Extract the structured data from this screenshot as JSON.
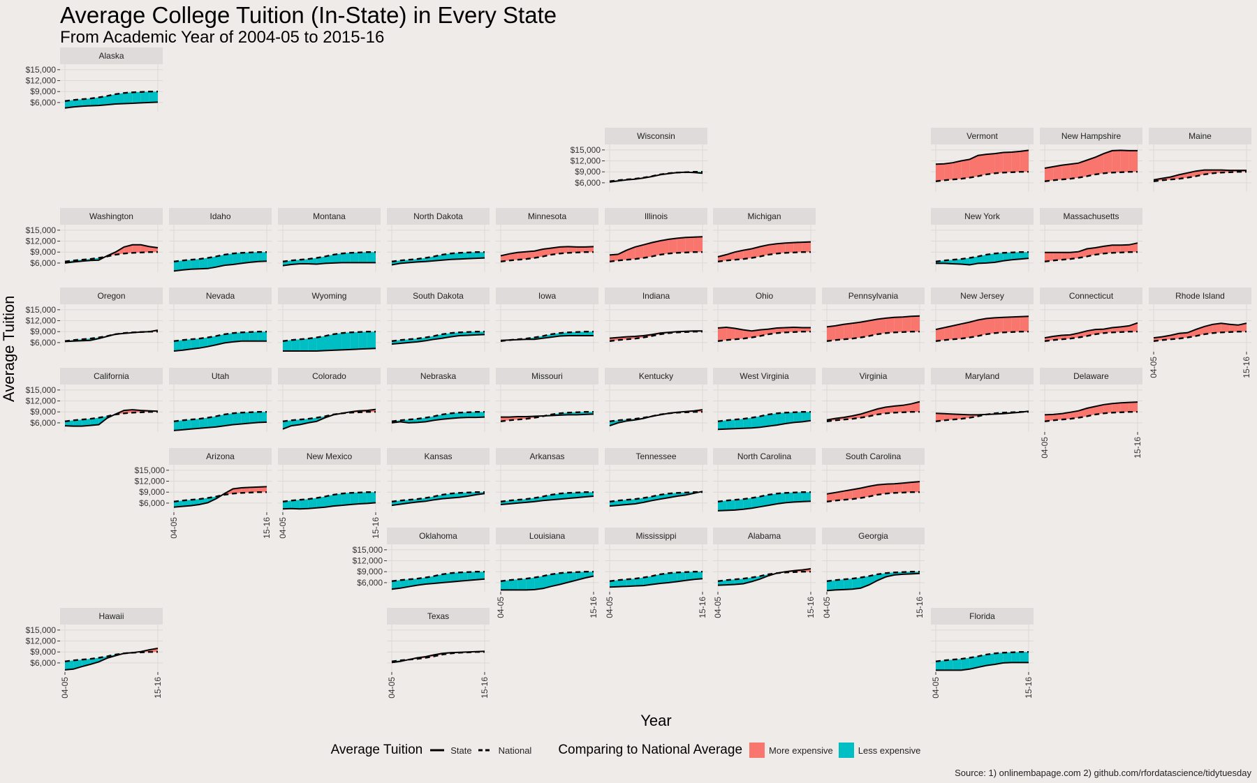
{
  "title": "Average College Tuition (In-State) in Every State",
  "subtitle": "From Academic Year of 2004-05 to 2015-16",
  "source": "Source: 1) onlinembapage.com 2) github.com/rfordatascience/tidytuesday",
  "colors": {
    "background": "#efebe9",
    "grid": "#dcd8d6",
    "strip": "#dedbda",
    "more": "#f8766d",
    "less": "#00bfc4"
  },
  "legend": {
    "line_title": "Average Tuition",
    "state_label": "State",
    "national_label": "National",
    "fill_title": "Comparing to National Average",
    "more_label": "More expensive",
    "less_label": "Less expensive"
  },
  "chart_data": {
    "type": "area",
    "facet": "state",
    "xlabel": "Year",
    "ylabel": "Average Tuition",
    "x_tick_labels": [
      "04-05",
      "15-16"
    ],
    "y_ticks": [
      6000,
      9000,
      12000,
      15000
    ],
    "y_tick_labels": [
      "$6,000",
      "$9,000",
      "$12,000",
      "$15,000"
    ],
    "ylim": [
      3500,
      16500
    ],
    "grid": true,
    "legend_position": "bottom",
    "national": [
      6400,
      6700,
      6900,
      7100,
      7400,
      7800,
      8300,
      8600,
      8800,
      8900,
      9000,
      9000
    ],
    "states": [
      {
        "name": "Alaska",
        "values": [
          4500,
          4800,
          5000,
          5100,
          5200,
          5400,
          5600,
          5700,
          5800,
          5900,
          6000,
          6100
        ]
      },
      {
        "name": "Wisconsin",
        "values": [
          6200,
          6500,
          6800,
          7000,
          7300,
          7700,
          8200,
          8500,
          8800,
          8900,
          8800,
          8600
        ]
      },
      {
        "name": "Vermont",
        "values": [
          11100,
          11200,
          11500,
          12000,
          12400,
          13500,
          13800,
          14000,
          14300,
          14400,
          14600,
          14900
        ]
      },
      {
        "name": "New Hampshire",
        "values": [
          10000,
          10400,
          10800,
          11100,
          11400,
          12200,
          13000,
          14000,
          14800,
          14900,
          14800,
          14800
        ]
      },
      {
        "name": "Maine",
        "values": [
          6800,
          7200,
          7600,
          8200,
          8700,
          9200,
          9500,
          9500,
          9500,
          9400,
          9400,
          9400
        ]
      },
      {
        "name": "Washington",
        "values": [
          6000,
          6300,
          6500,
          6700,
          6800,
          8000,
          9000,
          10400,
          11000,
          11000,
          10500,
          10200
        ]
      },
      {
        "name": "Idaho",
        "values": [
          3800,
          4100,
          4300,
          4400,
          4500,
          4900,
          5400,
          5600,
          5900,
          6200,
          6400,
          6500
        ]
      },
      {
        "name": "Montana",
        "values": [
          5300,
          5600,
          5800,
          5800,
          5700,
          5900,
          6000,
          6100,
          6100,
          6100,
          6100,
          6100
        ]
      },
      {
        "name": "North Dakota",
        "values": [
          5500,
          5900,
          6100,
          6300,
          6400,
          6600,
          6800,
          7000,
          7100,
          7200,
          7300,
          7400
        ]
      },
      {
        "name": "Minnesota",
        "values": [
          8000,
          8500,
          8900,
          9100,
          9300,
          9800,
          10100,
          10400,
          10500,
          10400,
          10400,
          10500
        ]
      },
      {
        "name": "Illinois",
        "values": [
          8200,
          8400,
          9500,
          10400,
          11000,
          11600,
          12100,
          12500,
          12800,
          13000,
          13100,
          13200
        ]
      },
      {
        "name": "Michigan",
        "values": [
          7700,
          8300,
          9000,
          9500,
          9900,
          10500,
          11000,
          11300,
          11500,
          11600,
          11700,
          11800
        ]
      },
      {
        "name": "New York",
        "values": [
          5900,
          5900,
          5800,
          5700,
          5500,
          5900,
          6000,
          6200,
          6600,
          6900,
          7100,
          7300
        ]
      },
      {
        "name": "Massachusetts",
        "values": [
          8900,
          8900,
          8900,
          8900,
          9100,
          9900,
          10200,
          10600,
          10900,
          10900,
          11000,
          11500
        ]
      },
      {
        "name": "Oregon",
        "values": [
          6300,
          6400,
          6500,
          6600,
          7100,
          7700,
          8300,
          8500,
          8700,
          8900,
          9000,
          9400
        ]
      },
      {
        "name": "Nevada",
        "values": [
          3700,
          3900,
          4200,
          4500,
          4900,
          5400,
          5900,
          6200,
          6400,
          6400,
          6400,
          6400
        ]
      },
      {
        "name": "Wyoming",
        "values": [
          3700,
          3700,
          3700,
          3700,
          3700,
          3800,
          3900,
          4000,
          4100,
          4200,
          4300,
          4400
        ]
      },
      {
        "name": "South Dakota",
        "values": [
          5600,
          5800,
          6000,
          6200,
          6500,
          6900,
          7200,
          7600,
          7900,
          8000,
          8100,
          8200
        ]
      },
      {
        "name": "Iowa",
        "values": [
          6600,
          6700,
          6800,
          6900,
          6900,
          7200,
          7500,
          7800,
          7900,
          7900,
          7900,
          7900
        ]
      },
      {
        "name": "Indiana",
        "values": [
          7200,
          7400,
          7600,
          7700,
          7900,
          8200,
          8600,
          8800,
          9000,
          9100,
          9200,
          9200
        ]
      },
      {
        "name": "Ohio",
        "values": [
          10000,
          10200,
          9900,
          9500,
          9200,
          9500,
          9700,
          10000,
          10100,
          10200,
          10100,
          10100
        ]
      },
      {
        "name": "Pennsylvania",
        "values": [
          10300,
          10600,
          11000,
          11300,
          11600,
          12000,
          12400,
          12700,
          12900,
          13000,
          13200,
          13300
        ]
      },
      {
        "name": "New Jersey",
        "values": [
          9600,
          10100,
          10600,
          11100,
          11600,
          12200,
          12600,
          12800,
          12900,
          13000,
          13100,
          13200
        ]
      },
      {
        "name": "Connecticut",
        "values": [
          7300,
          7700,
          8000,
          8100,
          8600,
          9200,
          9600,
          9700,
          10100,
          10300,
          10600,
          11400
        ]
      },
      {
        "name": "Rhode Island",
        "values": [
          7300,
          7600,
          8000,
          8500,
          8700,
          9600,
          10400,
          11000,
          11300,
          11000,
          10800,
          11300
        ]
      },
      {
        "name": "California",
        "values": [
          5200,
          5100,
          5100,
          5300,
          5500,
          7300,
          8400,
          9400,
          9600,
          9400,
          9300,
          9200
        ]
      },
      {
        "name": "Utah",
        "values": [
          3900,
          4100,
          4300,
          4500,
          4700,
          4900,
          5200,
          5500,
          5700,
          5900,
          6100,
          6200
        ]
      },
      {
        "name": "Colorado",
        "values": [
          4300,
          5200,
          5500,
          6000,
          6400,
          7400,
          8200,
          8600,
          9000,
          9300,
          9400,
          9700
        ]
      },
      {
        "name": "Nebraska",
        "values": [
          6000,
          6300,
          6000,
          6100,
          6300,
          6700,
          7000,
          7200,
          7400,
          7500,
          7500,
          7600
        ]
      },
      {
        "name": "Missouri",
        "values": [
          7600,
          7600,
          7700,
          7700,
          7800,
          7900,
          8000,
          8100,
          8200,
          8200,
          8300,
          8400
        ]
      },
      {
        "name": "Kentucky",
        "values": [
          5200,
          6000,
          6500,
          6800,
          7200,
          7800,
          8200,
          8600,
          8900,
          9100,
          9300,
          9600
        ]
      },
      {
        "name": "West Virginia",
        "values": [
          4200,
          4300,
          4400,
          4500,
          4600,
          4800,
          5100,
          5400,
          5800,
          6100,
          6300,
          6600
        ]
      },
      {
        "name": "Virginia",
        "values": [
          6800,
          7200,
          7500,
          7900,
          8400,
          9100,
          9800,
          10300,
          10600,
          10800,
          11200,
          11800
        ]
      },
      {
        "name": "Maryland",
        "values": [
          8600,
          8500,
          8400,
          8300,
          8200,
          8200,
          8300,
          8400,
          8500,
          8700,
          8900,
          9200
        ]
      },
      {
        "name": "Delaware",
        "values": [
          8200,
          8300,
          8500,
          8900,
          9300,
          10000,
          10500,
          11000,
          11300,
          11500,
          11600,
          11700
        ]
      },
      {
        "name": "Arizona",
        "values": [
          4900,
          5100,
          5300,
          5600,
          6100,
          7200,
          8600,
          9900,
          10200,
          10300,
          10400,
          10500
        ]
      },
      {
        "name": "New Mexico",
        "values": [
          4400,
          4500,
          4400,
          4500,
          4700,
          4900,
          5200,
          5400,
          5600,
          5800,
          5900,
          6100
        ]
      },
      {
        "name": "Kansas",
        "values": [
          5400,
          5700,
          6000,
          6300,
          6500,
          6900,
          7200,
          7400,
          7600,
          7900,
          8300,
          8600
        ]
      },
      {
        "name": "Arkansas",
        "values": [
          5600,
          5800,
          6000,
          6200,
          6400,
          6700,
          6900,
          7100,
          7300,
          7500,
          7700,
          7900
        ]
      },
      {
        "name": "Tennessee",
        "values": [
          5200,
          5400,
          5600,
          5800,
          6200,
          6700,
          7100,
          7500,
          7900,
          8200,
          8700,
          9200
        ]
      },
      {
        "name": "North Carolina",
        "values": [
          3900,
          4000,
          4100,
          4300,
          4600,
          5000,
          5400,
          5800,
          6100,
          6300,
          6400,
          6500
        ]
      },
      {
        "name": "South Carolina",
        "values": [
          8500,
          8900,
          9300,
          9700,
          10100,
          10600,
          11000,
          11200,
          11300,
          11500,
          11700,
          11900
        ]
      },
      {
        "name": "Oklahoma",
        "values": [
          4200,
          4500,
          4900,
          5300,
          5600,
          5800,
          6000,
          6200,
          6400,
          6600,
          6800,
          7000
        ]
      },
      {
        "name": "Louisiana",
        "values": [
          4000,
          4000,
          4000,
          4000,
          4100,
          4400,
          5000,
          5500,
          6100,
          6700,
          7300,
          7800
        ]
      },
      {
        "name": "Mississippi",
        "values": [
          4800,
          4900,
          5000,
          5100,
          5200,
          5500,
          5800,
          6000,
          6300,
          6600,
          6900,
          7100
        ]
      },
      {
        "name": "Alabama",
        "values": [
          5300,
          5400,
          5500,
          5700,
          6300,
          7000,
          7900,
          8600,
          9000,
          9300,
          9500,
          9800
        ]
      },
      {
        "name": "Georgia",
        "values": [
          3800,
          4000,
          4100,
          4200,
          4500,
          5400,
          6600,
          7600,
          8100,
          8300,
          8400,
          8500
        ]
      },
      {
        "name": "Hawaii",
        "values": [
          4100,
          4300,
          5000,
          5600,
          6300,
          7300,
          8000,
          8600,
          8800,
          9100,
          9600,
          10000
        ]
      },
      {
        "name": "Texas",
        "values": [
          6100,
          6400,
          6900,
          7400,
          7700,
          8200,
          8600,
          8800,
          8900,
          9000,
          9100,
          9200
        ]
      },
      {
        "name": "Florida",
        "values": [
          4000,
          4000,
          4000,
          4000,
          4300,
          4800,
          5300,
          5600,
          6000,
          6100,
          6100,
          6100
        ]
      }
    ]
  }
}
